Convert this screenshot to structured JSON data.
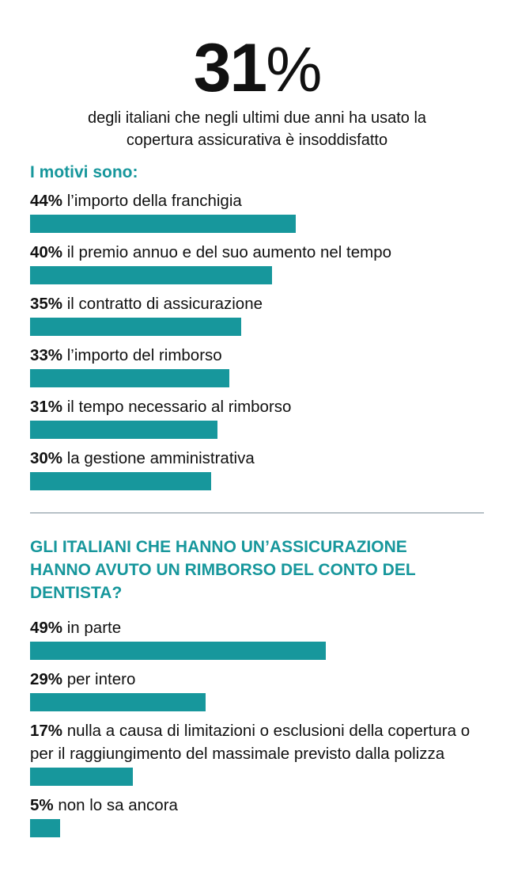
{
  "headline": "31%",
  "subtitle": "degli italiani che negli ultimi due anni ha usato la copertura assicurativa è insoddisfatto",
  "chart_data": [
    {
      "type": "bar",
      "title": "I motivi sono:",
      "color": "#17979c",
      "categories": [
        "l’importo della franchigia",
        "il premio annuo e del suo aumento nel tempo",
        "il contratto di assicurazione",
        "l’importo del rimborso",
        "il tempo necessario al rimborso",
        "la gestione amministrativa"
      ],
      "values": [
        44,
        40,
        35,
        33,
        31,
        30
      ],
      "value_labels": [
        "44%",
        "40%",
        "35%",
        "33%",
        "31%",
        "30%"
      ]
    },
    {
      "type": "bar",
      "title": "GLI ITALIANI CHE HANNO UN’ASSICURAZIONE HANNO AVUTO UN RIMBORSO DEL CONTO DEL DENTISTA?",
      "color": "#17979c",
      "categories": [
        "in parte",
        "per intero",
        "nulla a causa di limitazioni o esclusioni della copertura o per il raggiungimento del massimale previsto dalla polizza",
        "non lo sa ancora"
      ],
      "values": [
        49,
        29,
        17,
        5
      ],
      "value_labels": [
        "49%",
        "29%",
        "17%",
        "5%"
      ]
    }
  ]
}
